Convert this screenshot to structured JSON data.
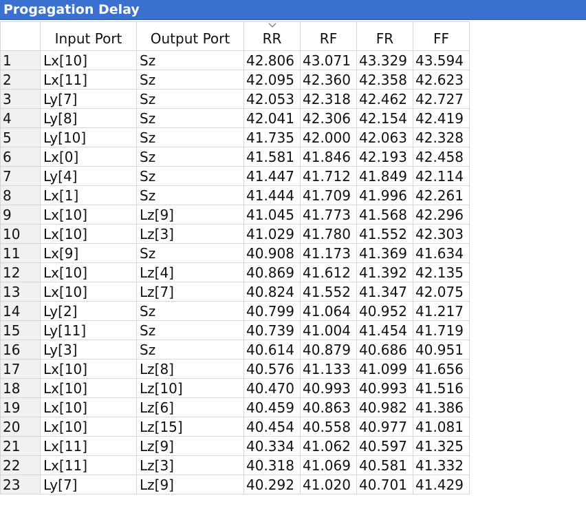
{
  "window": {
    "title": "Progagation Delay"
  },
  "table": {
    "columns": [
      "",
      "Input Port",
      "Output Port",
      "RR",
      "RF",
      "FR",
      "FF"
    ],
    "sorted_column": "RR",
    "rows": [
      [
        "1",
        "Lx[10]",
        "Sz",
        "42.806",
        "43.071",
        "43.329",
        "43.594"
      ],
      [
        "2",
        "Lx[11]",
        "Sz",
        "42.095",
        "42.360",
        "42.358",
        "42.623"
      ],
      [
        "3",
        "Ly[7]",
        "Sz",
        "42.053",
        "42.318",
        "42.462",
        "42.727"
      ],
      [
        "4",
        "Ly[8]",
        "Sz",
        "42.041",
        "42.306",
        "42.154",
        "42.419"
      ],
      [
        "5",
        "Ly[10]",
        "Sz",
        "41.735",
        "42.000",
        "42.063",
        "42.328"
      ],
      [
        "6",
        "Lx[0]",
        "Sz",
        "41.581",
        "41.846",
        "42.193",
        "42.458"
      ],
      [
        "7",
        "Ly[4]",
        "Sz",
        "41.447",
        "41.712",
        "41.849",
        "42.114"
      ],
      [
        "8",
        "Lx[1]",
        "Sz",
        "41.444",
        "41.709",
        "41.996",
        "42.261"
      ],
      [
        "9",
        "Lx[10]",
        "Lz[9]",
        "41.045",
        "41.773",
        "41.568",
        "42.296"
      ],
      [
        "10",
        "Lx[10]",
        "Lz[3]",
        "41.029",
        "41.780",
        "41.552",
        "42.303"
      ],
      [
        "11",
        "Lx[9]",
        "Sz",
        "40.908",
        "41.173",
        "41.369",
        "41.634"
      ],
      [
        "12",
        "Lx[10]",
        "Lz[4]",
        "40.869",
        "41.612",
        "41.392",
        "42.135"
      ],
      [
        "13",
        "Lx[10]",
        "Lz[7]",
        "40.824",
        "41.552",
        "41.347",
        "42.075"
      ],
      [
        "14",
        "Ly[2]",
        "Sz",
        "40.799",
        "41.064",
        "40.952",
        "41.217"
      ],
      [
        "15",
        "Ly[11]",
        "Sz",
        "40.739",
        "41.004",
        "41.454",
        "41.719"
      ],
      [
        "16",
        "Ly[3]",
        "Sz",
        "40.614",
        "40.879",
        "40.686",
        "40.951"
      ],
      [
        "17",
        "Lx[10]",
        "Lz[8]",
        "40.576",
        "41.133",
        "41.099",
        "41.656"
      ],
      [
        "18",
        "Lx[10]",
        "Lz[10]",
        "40.470",
        "40.993",
        "40.993",
        "41.516"
      ],
      [
        "19",
        "Lx[10]",
        "Lz[6]",
        "40.459",
        "40.863",
        "40.982",
        "41.386"
      ],
      [
        "20",
        "Lx[10]",
        "Lz[15]",
        "40.454",
        "40.558",
        "40.977",
        "41.081"
      ],
      [
        "21",
        "Lx[11]",
        "Lz[9]",
        "40.334",
        "41.062",
        "40.597",
        "41.325"
      ],
      [
        "22",
        "Lx[11]",
        "Lz[3]",
        "40.318",
        "41.069",
        "40.581",
        "41.332"
      ],
      [
        "23",
        "Ly[7]",
        "Lz[9]",
        "40.292",
        "41.020",
        "40.701",
        "41.429"
      ]
    ]
  }
}
